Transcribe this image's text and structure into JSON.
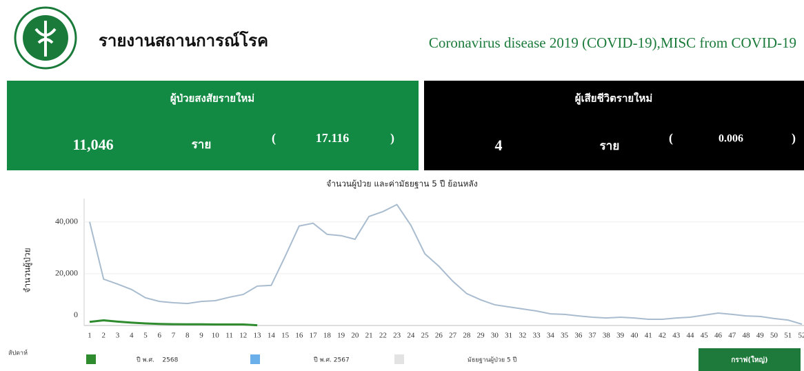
{
  "header": {
    "title": "รายงานสถานการณ์โรค",
    "disease": "Coronavirus disease 2019 (COVID-19),MISC from COVID-19"
  },
  "cards": [
    {
      "title": "ผู้ป่วยสงสัยรายใหม่",
      "count": "11,046",
      "unit": "ราย",
      "rate": "17.116"
    },
    {
      "title": "ผู้เสียชีวิตรายใหม่",
      "count": "4",
      "unit": "ราย",
      "rate": "0.006"
    }
  ],
  "chart_data": {
    "type": "line",
    "title": "จำนวนผู้ป่วย และค่ามัธยฐาน 5 ปี ย้อนหลัง",
    "y_label": "จำนวนผู้ป่วย",
    "x_label": "สัปดาห์",
    "categories": [
      "1",
      "2",
      "3",
      "4",
      "5",
      "6",
      "7",
      "8",
      "9",
      "10",
      "11",
      "12",
      "13",
      "14",
      "15",
      "16",
      "17",
      "18",
      "19",
      "20",
      "21",
      "22",
      "23",
      "24",
      "25",
      "26",
      "27",
      "28",
      "29",
      "30",
      "31",
      "32",
      "33",
      "34",
      "35",
      "36",
      "37",
      "38",
      "39",
      "40",
      "41",
      "42",
      "43",
      "44",
      "45",
      "46",
      "47",
      "48",
      "49",
      "50",
      "51",
      "52"
    ],
    "series": [
      {
        "name": "ปี พ.ศ.    2568",
        "color": "#2e8b2e",
        "values": [
          1400,
          2000,
          1500,
          1100,
          800,
          600,
          500,
          450,
          450,
          400,
          400,
          400,
          100,
          null,
          null,
          null,
          null,
          null,
          null,
          null,
          null,
          null,
          null,
          null,
          null,
          null,
          null,
          null,
          null,
          null,
          null,
          null,
          null,
          null,
          null,
          null,
          null,
          null,
          null,
          null,
          null,
          null,
          null,
          null,
          null,
          null,
          null,
          null,
          null,
          null,
          null,
          null
        ]
      },
      {
        "name": "ปี พ.ศ. 2567",
        "color": "#6aaeea",
        "values": [
          null,
          null,
          null,
          null,
          null,
          null,
          null,
          null,
          null,
          null,
          null,
          null,
          null,
          null,
          null,
          null,
          null,
          null,
          null,
          null,
          null,
          null,
          null,
          null,
          null,
          null,
          null,
          null,
          null,
          null,
          null,
          null,
          null,
          null,
          null,
          null,
          null,
          null,
          null,
          null,
          null,
          null,
          null,
          null,
          null,
          null,
          null,
          null,
          null,
          null,
          null,
          null
        ]
      },
      {
        "name": "มัธยฐานผู้ป่วย 5 ปี",
        "color": "#a9bccf",
        "legend_color": "#e3e3e3",
        "values": [
          40000,
          17900,
          16000,
          13900,
          10700,
          9300,
          8800,
          8500,
          9300,
          9600,
          10900,
          12000,
          15200,
          15500,
          26700,
          38400,
          39500,
          35200,
          34700,
          33300,
          42100,
          44000,
          46700,
          38700,
          27700,
          22900,
          17100,
          12300,
          9900,
          8000,
          7200,
          6400,
          5600,
          4500,
          4300,
          3700,
          3200,
          2900,
          3200,
          2900,
          2400,
          2400,
          2900,
          3200,
          4000,
          4800,
          4300,
          3700,
          3500,
          2700,
          2100,
          500
        ]
      }
    ],
    "ylim": [
      0,
      49000
    ],
    "yticks": [
      0,
      {
        "value": 20000,
        "label": "20,000"
      },
      {
        "value": 40000,
        "label": "40,000"
      }
    ],
    "grid": true
  },
  "button": "กราฟ(ใหญ่)"
}
